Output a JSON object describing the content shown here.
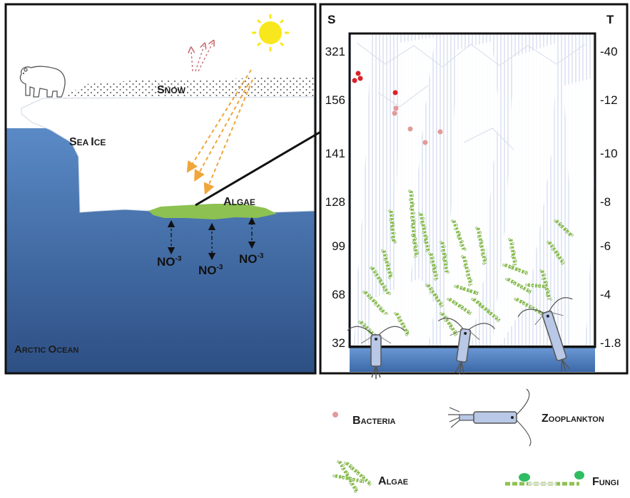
{
  "left_panel": {
    "snow_label_first": "S",
    "snow_label_rest": "NOW",
    "sea_ice_first_1": "S",
    "sea_ice_rest_1": "EA ",
    "sea_ice_first_2": "I",
    "sea_ice_rest_2": "CE",
    "algae_first": "A",
    "algae_rest": "LGAE",
    "ocean_first_1": "A",
    "ocean_rest_1": "RCTIC ",
    "ocean_first_2": "O",
    "ocean_rest_2": "CEAN",
    "nitrate": "NO",
    "nitrate_sup": "-3"
  },
  "right_panel": {
    "left_axis_title": "S",
    "right_axis_title": "T",
    "left_ticks": [
      "321",
      "156",
      "141",
      "128",
      "99",
      "68",
      "32"
    ],
    "right_ticks": [
      "-40",
      "-12",
      "-10",
      "-8",
      "-6",
      "-4",
      "-1.8"
    ]
  },
  "legend": {
    "bacteria_first": "B",
    "bacteria_rest": "ACTERIA",
    "zooplankton_first": "Z",
    "zooplankton_rest": "OOPLANKTON",
    "algae_first": "A",
    "algae_rest": "LGAE",
    "fungi_first": "F",
    "fungi_rest": "UNGI"
  },
  "colors": {
    "ocean_top": "#4a7cbc",
    "ocean_bottom": "#2e5186",
    "algae": "#8dc151",
    "sun": "#f8e71c",
    "bacteria_dark": "#d9232a",
    "bacteria_light": "#e39a98",
    "zooplankton": "#b8c8e6"
  }
}
